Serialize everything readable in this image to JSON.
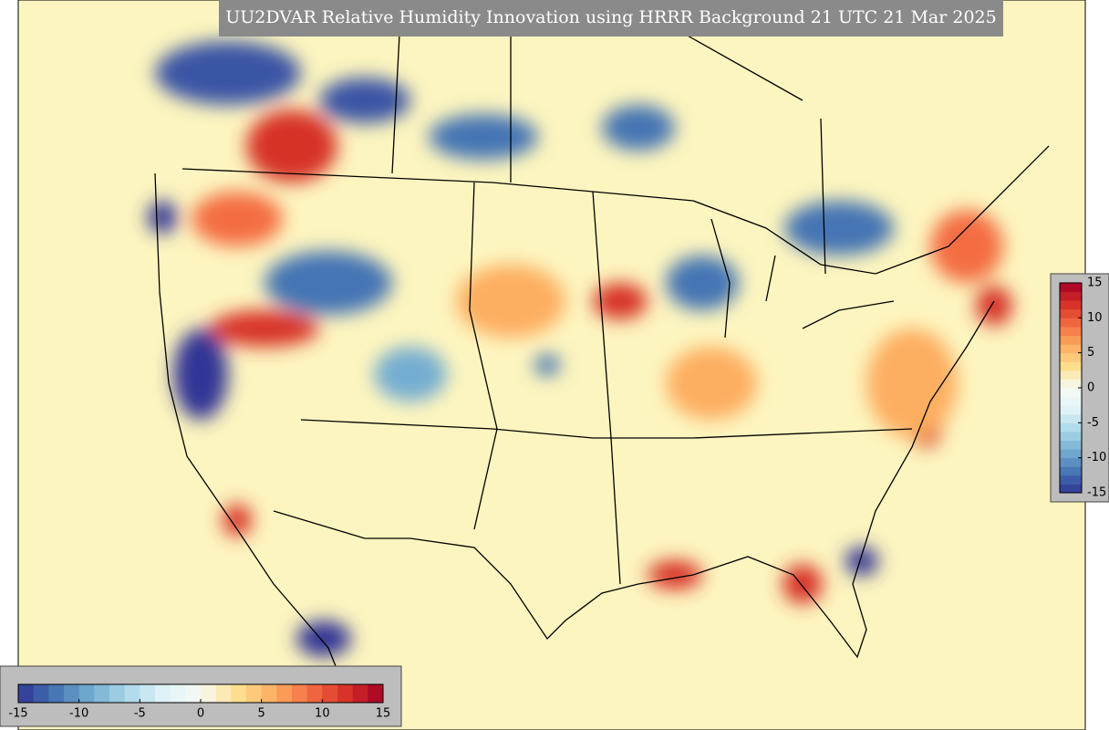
{
  "title": "UU2DVAR Relative Humidity Innovation using HRRR Background 21 UTC 21 Mar 2025",
  "colormap": [
    "#313695",
    "#4575b4",
    "#74add1",
    "#abd9e9",
    "#e0f3f8",
    "#f7fbf4",
    "#fee090",
    "#fdae61",
    "#f46d43",
    "#d73027",
    "#a50026"
  ],
  "colorbar_bottom": {
    "lim": [
      -15,
      15
    ],
    "ticks": [
      -15,
      -10,
      -5,
      0,
      5,
      10,
      15
    ]
  },
  "colorbar_right": {
    "lim": [
      -15,
      15
    ],
    "ticks": [
      15,
      10,
      5,
      0,
      -5,
      -10,
      -15
    ]
  }
}
